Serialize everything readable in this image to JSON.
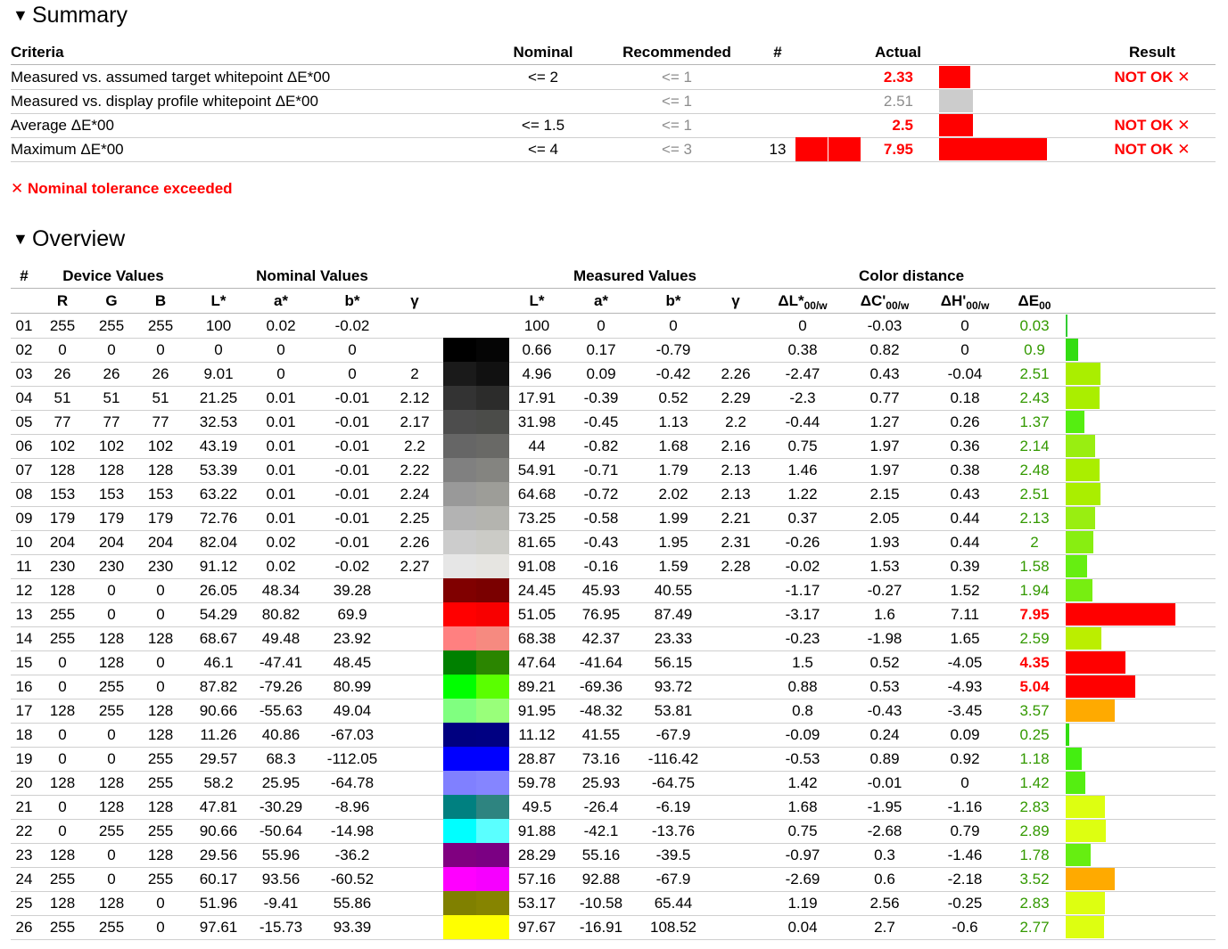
{
  "summary": {
    "title": "Summary",
    "headers": {
      "criteria": "Criteria",
      "nominal": "Nominal",
      "recommended": "Recommended",
      "count": "#",
      "actual": "Actual",
      "result": "Result"
    },
    "rows": [
      {
        "criteria": "Measured vs. assumed target whitepoint ΔE*00",
        "nominal": "<= 2",
        "recommended": "<= 1",
        "count": "",
        "actual": "2.33",
        "actual_status": "fail",
        "result": "NOT OK ✕",
        "bar_color": "#ff0000",
        "bar_value": 2.33
      },
      {
        "criteria": "Measured vs. display profile whitepoint ΔE*00",
        "nominal": "",
        "recommended": "<= 1",
        "count": "",
        "actual": "2.51",
        "actual_status": "info",
        "result": "",
        "bar_color": "#cccccc",
        "bar_value": 2.51
      },
      {
        "criteria": "Average ΔE*00",
        "nominal": "<= 1.5",
        "recommended": "<= 1",
        "count": "",
        "actual": "2.5",
        "actual_status": "fail",
        "result": "NOT OK ✕",
        "bar_color": "#ff0000",
        "bar_value": 2.5
      },
      {
        "criteria": "Maximum ΔE*00",
        "nominal": "<= 4",
        "recommended": "<= 3",
        "count": "13",
        "count_swatch": [
          "#ff0000",
          "#ff0000"
        ],
        "actual": "7.95",
        "actual_status": "fail",
        "result": "NOT OK ✕",
        "bar_color": "#ff0000",
        "bar_value": 7.95
      }
    ],
    "notice": "✕ Nominal tolerance exceeded"
  },
  "overview": {
    "title": "Overview",
    "group_headers": {
      "num": "#",
      "device": "Device Values",
      "nominal": "Nominal Values",
      "measured": "Measured Values",
      "distance": "Color distance"
    },
    "col_headers": {
      "r": "R",
      "g": "G",
      "b": "B",
      "nl": "L*",
      "na": "a*",
      "nb": "b*",
      "ng": "γ",
      "ml": "L*",
      "ma": "a*",
      "mb": "b*",
      "mg": "γ",
      "dl": "ΔL*",
      "dc": "ΔC'",
      "dh": "ΔH'",
      "de": "ΔE",
      "sub_w": "00/w",
      "sub_00": "00"
    },
    "rows": [
      {
        "id": "01",
        "r": "255",
        "g": "255",
        "b": "255",
        "nl": "100",
        "na": "0.02",
        "nb": "-0.02",
        "ng": "",
        "ml": "100",
        "ma": "0",
        "mb": "0",
        "mg": "",
        "dl": "0",
        "dc": "-0.03",
        "dh": "0",
        "de": "0.03",
        "nom": "#ffffff",
        "meas": "#ffffff",
        "bar": "#33cc33",
        "sev": "ok"
      },
      {
        "id": "02",
        "r": "0",
        "g": "0",
        "b": "0",
        "nl": "0",
        "na": "0",
        "nb": "0",
        "ng": "",
        "ml": "0.66",
        "ma": "0.17",
        "mb": "-0.79",
        "mg": "",
        "dl": "0.38",
        "dc": "0.82",
        "dh": "0",
        "de": "0.9",
        "nom": "#000000",
        "meas": "#050505",
        "bar": "#33dd11",
        "sev": "ok"
      },
      {
        "id": "03",
        "r": "26",
        "g": "26",
        "b": "26",
        "nl": "9.01",
        "na": "0",
        "nb": "0",
        "ng": "2",
        "ml": "4.96",
        "ma": "0.09",
        "mb": "-0.42",
        "mg": "2.26",
        "dl": "-2.47",
        "dc": "0.43",
        "dh": "-0.04",
        "de": "2.51",
        "nom": "#1a1a1a",
        "meas": "#111111",
        "bar": "#aaee00",
        "sev": "ok"
      },
      {
        "id": "04",
        "r": "51",
        "g": "51",
        "b": "51",
        "nl": "21.25",
        "na": "0.01",
        "nb": "-0.01",
        "ng": "2.12",
        "ml": "17.91",
        "ma": "-0.39",
        "mb": "0.52",
        "mg": "2.29",
        "dl": "-2.3",
        "dc": "0.77",
        "dh": "0.18",
        "de": "2.43",
        "nom": "#333333",
        "meas": "#2c2c2b",
        "bar": "#aaee00",
        "sev": "ok"
      },
      {
        "id": "05",
        "r": "77",
        "g": "77",
        "b": "77",
        "nl": "32.53",
        "na": "0.01",
        "nb": "-0.01",
        "ng": "2.17",
        "ml": "31.98",
        "ma": "-0.45",
        "mb": "1.13",
        "mg": "2.2",
        "dl": "-0.44",
        "dc": "1.27",
        "dh": "0.26",
        "de": "1.37",
        "nom": "#4d4d4d",
        "meas": "#4b4c49",
        "bar": "#55ee11",
        "sev": "ok"
      },
      {
        "id": "06",
        "r": "102",
        "g": "102",
        "b": "102",
        "nl": "43.19",
        "na": "0.01",
        "nb": "-0.01",
        "ng": "2.2",
        "ml": "44",
        "ma": "-0.82",
        "mb": "1.68",
        "mg": "2.16",
        "dl": "0.75",
        "dc": "1.97",
        "dh": "0.36",
        "de": "2.14",
        "nom": "#666666",
        "meas": "#696966",
        "bar": "#99ee11",
        "sev": "ok"
      },
      {
        "id": "07",
        "r": "128",
        "g": "128",
        "b": "128",
        "nl": "53.39",
        "na": "0.01",
        "nb": "-0.01",
        "ng": "2.22",
        "ml": "54.91",
        "ma": "-0.71",
        "mb": "1.79",
        "mg": "2.13",
        "dl": "1.46",
        "dc": "1.97",
        "dh": "0.38",
        "de": "2.48",
        "nom": "#808080",
        "meas": "#848480",
        "bar": "#aaee00",
        "sev": "ok"
      },
      {
        "id": "08",
        "r": "153",
        "g": "153",
        "b": "153",
        "nl": "63.22",
        "na": "0.01",
        "nb": "-0.01",
        "ng": "2.24",
        "ml": "64.68",
        "ma": "-0.72",
        "mb": "2.02",
        "mg": "2.13",
        "dl": "1.22",
        "dc": "2.15",
        "dh": "0.43",
        "de": "2.51",
        "nom": "#999999",
        "meas": "#9d9d98",
        "bar": "#aaee00",
        "sev": "ok"
      },
      {
        "id": "09",
        "r": "179",
        "g": "179",
        "b": "179",
        "nl": "72.76",
        "na": "0.01",
        "nb": "-0.01",
        "ng": "2.25",
        "ml": "73.25",
        "ma": "-0.58",
        "mb": "1.99",
        "mg": "2.21",
        "dl": "0.37",
        "dc": "2.05",
        "dh": "0.44",
        "de": "2.13",
        "nom": "#b3b3b3",
        "meas": "#b4b4af",
        "bar": "#99ee11",
        "sev": "ok"
      },
      {
        "id": "10",
        "r": "204",
        "g": "204",
        "b": "204",
        "nl": "82.04",
        "na": "0.02",
        "nb": "-0.01",
        "ng": "2.26",
        "ml": "81.65",
        "ma": "-0.43",
        "mb": "1.95",
        "mg": "2.31",
        "dl": "-0.26",
        "dc": "1.93",
        "dh": "0.44",
        "de": "2",
        "nom": "#cccccc",
        "meas": "#cbcbc6",
        "bar": "#88ee11",
        "sev": "ok"
      },
      {
        "id": "11",
        "r": "230",
        "g": "230",
        "b": "230",
        "nl": "91.12",
        "na": "0.02",
        "nb": "-0.02",
        "ng": "2.27",
        "ml": "91.08",
        "ma": "-0.16",
        "mb": "1.59",
        "mg": "2.28",
        "dl": "-0.02",
        "dc": "1.53",
        "dh": "0.39",
        "de": "1.58",
        "nom": "#e6e6e6",
        "meas": "#e6e5e1",
        "bar": "#66ee11",
        "sev": "ok"
      },
      {
        "id": "12",
        "r": "128",
        "g": "0",
        "b": "0",
        "nl": "26.05",
        "na": "48.34",
        "nb": "39.28",
        "ng": "",
        "ml": "24.45",
        "ma": "45.93",
        "mb": "40.55",
        "mg": "",
        "dl": "-1.17",
        "dc": "-0.27",
        "dh": "1.52",
        "de": "1.94",
        "nom": "#800000",
        "meas": "#7a0000",
        "bar": "#77ee11",
        "sev": "ok"
      },
      {
        "id": "13",
        "r": "255",
        "g": "0",
        "b": "0",
        "nl": "54.29",
        "na": "80.82",
        "nb": "69.9",
        "ng": "",
        "ml": "51.05",
        "ma": "76.95",
        "mb": "87.49",
        "mg": "",
        "dl": "-3.17",
        "dc": "1.6",
        "dh": "7.11",
        "de": "7.95",
        "nom": "#ff0000",
        "meas": "#f80000",
        "bar": "#ff0000",
        "sev": "bad"
      },
      {
        "id": "14",
        "r": "255",
        "g": "128",
        "b": "128",
        "nl": "68.67",
        "na": "49.48",
        "nb": "23.92",
        "ng": "",
        "ml": "68.38",
        "ma": "42.37",
        "mb": "23.33",
        "mg": "",
        "dl": "-0.23",
        "dc": "-1.98",
        "dh": "1.65",
        "de": "2.59",
        "nom": "#ff8080",
        "meas": "#f68a80",
        "bar": "#bbee00",
        "sev": "ok"
      },
      {
        "id": "15",
        "r": "0",
        "g": "128",
        "b": "0",
        "nl": "46.1",
        "na": "-47.41",
        "nb": "48.45",
        "ng": "",
        "ml": "47.64",
        "ma": "-41.64",
        "mb": "56.15",
        "mg": "",
        "dl": "1.5",
        "dc": "0.52",
        "dh": "-4.05",
        "de": "4.35",
        "nom": "#008000",
        "meas": "#2b8500",
        "bar": "#ff0000",
        "sev": "bad"
      },
      {
        "id": "16",
        "r": "0",
        "g": "255",
        "b": "0",
        "nl": "87.82",
        "na": "-79.26",
        "nb": "80.99",
        "ng": "",
        "ml": "89.21",
        "ma": "-69.36",
        "mb": "93.72",
        "mg": "",
        "dl": "0.88",
        "dc": "0.53",
        "dh": "-4.93",
        "de": "5.04",
        "nom": "#00ff00",
        "meas": "#5aff00",
        "bar": "#ff0000",
        "sev": "bad"
      },
      {
        "id": "17",
        "r": "128",
        "g": "255",
        "b": "128",
        "nl": "90.66",
        "na": "-55.63",
        "nb": "49.04",
        "ng": "",
        "ml": "91.95",
        "ma": "-48.32",
        "mb": "53.81",
        "mg": "",
        "dl": "0.8",
        "dc": "-0.43",
        "dh": "-3.45",
        "de": "3.57",
        "nom": "#80ff80",
        "meas": "#99ff7a",
        "bar": "#ffaa00",
        "sev": "ok"
      },
      {
        "id": "18",
        "r": "0",
        "g": "0",
        "b": "128",
        "nl": "11.26",
        "na": "40.86",
        "nb": "-67.03",
        "ng": "",
        "ml": "11.12",
        "ma": "41.55",
        "mb": "-67.9",
        "mg": "",
        "dl": "-0.09",
        "dc": "0.24",
        "dh": "0.09",
        "de": "0.25",
        "nom": "#000080",
        "meas": "#000082",
        "bar": "#33dd11",
        "sev": "ok"
      },
      {
        "id": "19",
        "r": "0",
        "g": "0",
        "b": "255",
        "nl": "29.57",
        "na": "68.3",
        "nb": "-112.05",
        "ng": "",
        "ml": "28.87",
        "ma": "73.16",
        "mb": "-116.42",
        "mg": "",
        "dl": "-0.53",
        "dc": "0.89",
        "dh": "0.92",
        "de": "1.18",
        "nom": "#0000ff",
        "meas": "#0000ff",
        "bar": "#44ee11",
        "sev": "ok"
      },
      {
        "id": "20",
        "r": "128",
        "g": "128",
        "b": "255",
        "nl": "58.2",
        "na": "25.95",
        "nb": "-64.78",
        "ng": "",
        "ml": "59.78",
        "ma": "25.93",
        "mb": "-64.75",
        "mg": "",
        "dl": "1.42",
        "dc": "-0.01",
        "dh": "0",
        "de": "1.42",
        "nom": "#8080ff",
        "meas": "#8585ff",
        "bar": "#55ee11",
        "sev": "ok"
      },
      {
        "id": "21",
        "r": "0",
        "g": "128",
        "b": "128",
        "nl": "47.81",
        "na": "-30.29",
        "nb": "-8.96",
        "ng": "",
        "ml": "49.5",
        "ma": "-26.4",
        "mb": "-6.19",
        "mg": "",
        "dl": "1.68",
        "dc": "-1.95",
        "dh": "-1.16",
        "de": "2.83",
        "nom": "#008080",
        "meas": "#2e8480",
        "bar": "#ddff11",
        "sev": "ok"
      },
      {
        "id": "22",
        "r": "0",
        "g": "255",
        "b": "255",
        "nl": "90.66",
        "na": "-50.64",
        "nb": "-14.98",
        "ng": "",
        "ml": "91.88",
        "ma": "-42.1",
        "mb": "-13.76",
        "mg": "",
        "dl": "0.75",
        "dc": "-2.68",
        "dh": "0.79",
        "de": "2.89",
        "nom": "#00ffff",
        "meas": "#5affff",
        "bar": "#ddff11",
        "sev": "ok"
      },
      {
        "id": "23",
        "r": "128",
        "g": "0",
        "b": "128",
        "nl": "29.56",
        "na": "55.96",
        "nb": "-36.2",
        "ng": "",
        "ml": "28.29",
        "ma": "55.16",
        "mb": "-39.5",
        "mg": "",
        "dl": "-0.97",
        "dc": "0.3",
        "dh": "-1.46",
        "de": "1.78",
        "nom": "#800080",
        "meas": "#7b0083",
        "bar": "#66ee11",
        "sev": "ok"
      },
      {
        "id": "24",
        "r": "255",
        "g": "0",
        "b": "255",
        "nl": "60.17",
        "na": "93.56",
        "nb": "-60.52",
        "ng": "",
        "ml": "57.16",
        "ma": "92.88",
        "mb": "-67.9",
        "mg": "",
        "dl": "-2.69",
        "dc": "0.6",
        "dh": "-2.18",
        "de": "3.52",
        "nom": "#ff00ff",
        "meas": "#f600ff",
        "bar": "#ffaa00",
        "sev": "ok"
      },
      {
        "id": "25",
        "r": "128",
        "g": "128",
        "b": "0",
        "nl": "51.96",
        "na": "-9.41",
        "nb": "55.86",
        "ng": "",
        "ml": "53.17",
        "ma": "-10.58",
        "mb": "65.44",
        "mg": "",
        "dl": "1.19",
        "dc": "2.56",
        "dh": "-0.25",
        "de": "2.83",
        "nom": "#808000",
        "meas": "#868400",
        "bar": "#ddff11",
        "sev": "ok"
      },
      {
        "id": "26",
        "r": "255",
        "g": "255",
        "b": "0",
        "nl": "97.61",
        "na": "-15.73",
        "nb": "93.39",
        "ng": "",
        "ml": "97.67",
        "ma": "-16.91",
        "mb": "108.52",
        "mg": "",
        "dl": "0.04",
        "dc": "2.7",
        "dh": "-0.6",
        "de": "2.77",
        "nom": "#ffff00",
        "meas": "#ffff00",
        "bar": "#ddff11",
        "sev": "ok"
      }
    ]
  }
}
